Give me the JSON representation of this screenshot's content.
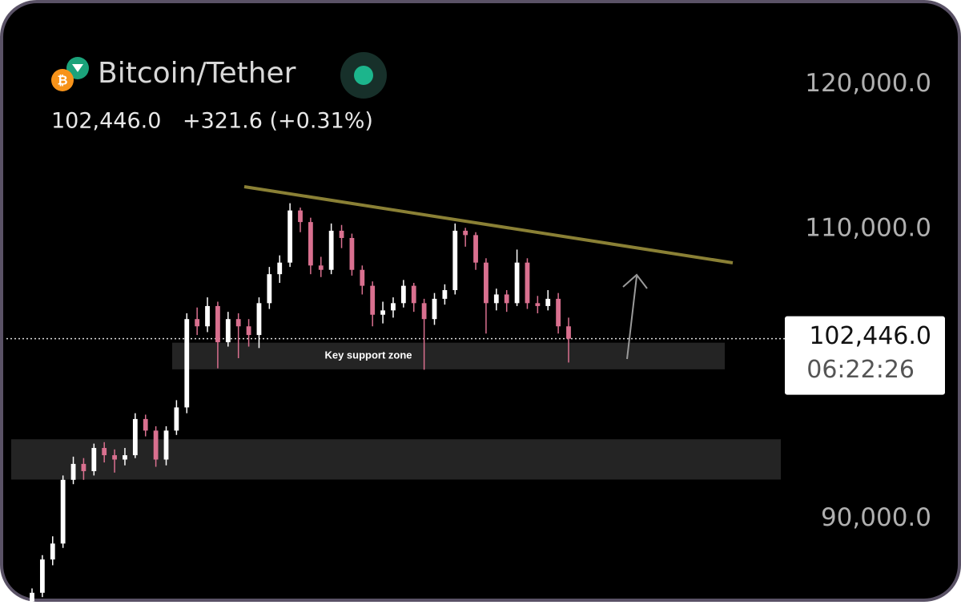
{
  "header": {
    "symbol": "Bitcoin/Tether",
    "change": "+321.6 (+0.31%)"
  },
  "chart_data": {
    "type": "candlestick",
    "ylim": [
      84278,
      125833
    ],
    "yticks": [
      {
        "value": 120000,
        "label": "120,000.0"
      },
      {
        "value": 110000,
        "label": "110,000.0"
      },
      {
        "value": 90000,
        "label": "90,000.0"
      }
    ],
    "up_color": "#ffffff",
    "down_color": "#d9708f",
    "last_price": {
      "value": 102446,
      "label": "102,446.0"
    },
    "countdown": "06:22:26",
    "zones": [
      {
        "label": "Key support zone",
        "from": 100330,
        "to": 102170
      },
      {
        "from": 92720,
        "to": 95500
      }
    ],
    "ohlc": [
      [
        84300,
        85200,
        84100,
        84900
      ],
      [
        84900,
        87500,
        84600,
        87200
      ],
      [
        87200,
        88800,
        86800,
        88300
      ],
      [
        88300,
        93000,
        88000,
        92700
      ],
      [
        92700,
        94300,
        92400,
        93800
      ],
      [
        93800,
        94200,
        92700,
        93300
      ],
      [
        93300,
        95200,
        93000,
        94900
      ],
      [
        94900,
        95300,
        93900,
        94400
      ],
      [
        94400,
        94800,
        93200,
        94100
      ],
      [
        94100,
        94900,
        93700,
        94400
      ],
      [
        94400,
        97300,
        94200,
        96900
      ],
      [
        96900,
        97200,
        95700,
        96100
      ],
      [
        96100,
        96400,
        93600,
        94100
      ],
      [
        94100,
        96400,
        93700,
        96100
      ],
      [
        96100,
        98200,
        95800,
        97700
      ],
      [
        97700,
        104200,
        97300,
        103800
      ],
      [
        103800,
        104600,
        102700,
        103300
      ],
      [
        103300,
        105300,
        102900,
        104700
      ],
      [
        104700,
        105000,
        100400,
        102200
      ],
      [
        102200,
        104300,
        101900,
        103800
      ],
      [
        103800,
        104200,
        101100,
        103300
      ],
      [
        103300,
        103800,
        101900,
        102700
      ],
      [
        102700,
        105300,
        101800,
        104900
      ],
      [
        104900,
        107400,
        104500,
        106900
      ],
      [
        106900,
        108200,
        106300,
        107700
      ],
      [
        107700,
        111800,
        107400,
        111300
      ],
      [
        111300,
        111500,
        109800,
        110500
      ],
      [
        110500,
        110800,
        106900,
        107500
      ],
      [
        107500,
        108100,
        106700,
        107200
      ],
      [
        107200,
        110400,
        106900,
        109900
      ],
      [
        109900,
        110300,
        108700,
        109400
      ],
      [
        109400,
        109700,
        106800,
        107200
      ],
      [
        107200,
        107500,
        105500,
        106100
      ],
      [
        106100,
        106400,
        103300,
        104100
      ],
      [
        104100,
        105000,
        103500,
        104400
      ],
      [
        104400,
        105300,
        103900,
        104900
      ],
      [
        104900,
        106500,
        104600,
        106100
      ],
      [
        106100,
        106300,
        104300,
        104900
      ],
      [
        104900,
        105200,
        100300,
        103800
      ],
      [
        103800,
        105600,
        103400,
        105200
      ],
      [
        105200,
        106200,
        104800,
        105800
      ],
      [
        105800,
        110400,
        105500,
        109900
      ],
      [
        109900,
        110100,
        108800,
        109600
      ],
      [
        109600,
        109800,
        107200,
        107700
      ],
      [
        107700,
        108000,
        102800,
        104900
      ],
      [
        104900,
        105900,
        104400,
        105500
      ],
      [
        105500,
        105800,
        104300,
        104900
      ],
      [
        104900,
        108600,
        104700,
        107700
      ],
      [
        107700,
        108000,
        104500,
        104900
      ],
      [
        104900,
        105400,
        104200,
        104700
      ],
      [
        104700,
        105800,
        104400,
        105200
      ],
      [
        105200,
        105600,
        102800,
        103300
      ],
      [
        103300,
        103900,
        100800,
        102446
      ]
    ]
  }
}
